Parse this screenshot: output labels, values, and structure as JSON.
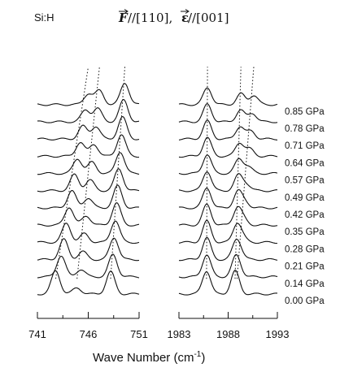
{
  "header": {
    "sample": "Si:H",
    "field_symbol": "F",
    "field_parallel": "//[110],",
    "pol_symbol": "ε",
    "pol_parallel": "//[001]"
  },
  "chart_data": {
    "type": "line",
    "title": "",
    "xlabel": "Wave Number (cm",
    "xlabel_sup": "-1",
    "xlabel_close": ")",
    "ylabel": "",
    "line_color": "#111111",
    "stacked_offset_traces": true,
    "panels": [
      {
        "name": "left",
        "xlim": [
          741,
          751
        ],
        "ticks": [
          "741",
          "746",
          "751"
        ],
        "tick_values": [
          741,
          746,
          751
        ],
        "minor_ticks": [
          743.5,
          748.5
        ]
      },
      {
        "name": "right",
        "xlim": [
          1983,
          1993
        ],
        "ticks": [
          "1983",
          "1988",
          "1993"
        ],
        "tick_values": [
          1983,
          1988,
          1993
        ],
        "minor_ticks": [
          1985.5,
          1990.5
        ]
      }
    ],
    "pressures": [
      "0.00 GPa",
      "0.14 GPa",
      "0.21 GPa",
      "0.28 GPa",
      "0.35 GPa",
      "0.42 GPa",
      "0.49 GPa",
      "0.57 GPa",
      "0.64 GPa",
      "0.71 GPa",
      "0.78 GPa",
      "0.85 GPa"
    ],
    "pressure_values": [
      0.0,
      0.14,
      0.21,
      0.28,
      0.35,
      0.42,
      0.49,
      0.57,
      0.64,
      0.71,
      0.78,
      0.85
    ],
    "series": [
      {
        "panel": "left",
        "peaks": [
          {
            "center_start": 742.8,
            "center_end": 746.0,
            "height_start": 0.75,
            "height_end": 0.35
          },
          {
            "center_start": 744.9,
            "center_end": 747.1,
            "height_start": 0.2,
            "height_end": 0.45
          },
          {
            "center_start": 748.2,
            "center_end": 749.6,
            "height_start": 0.72,
            "height_end": 0.7
          }
        ]
      },
      {
        "panel": "right",
        "peaks": [
          {
            "center_start": 1985.8,
            "center_end": 1985.9,
            "height_start": 0.75,
            "height_end": 0.55
          },
          {
            "center_start": 1988.7,
            "center_end": 1989.3,
            "height_start": 0.7,
            "height_end": 0.35
          },
          {
            "center_start": 1988.9,
            "center_end": 1990.6,
            "height_start": 0.05,
            "height_end": 0.3
          }
        ]
      }
    ]
  }
}
